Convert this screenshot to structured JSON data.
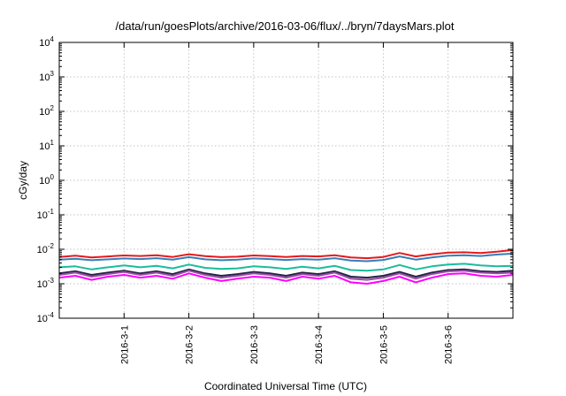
{
  "chart_data": {
    "type": "line",
    "title": "/data/run/goesPlots/archive/2016-03-06/flux/../bryn/7daysMars.plot",
    "xlabel": "Coordinated Universal Time (UTC)",
    "ylabel": "cGy/day",
    "yscale": "log",
    "ylim": [
      0.0001,
      10000
    ],
    "y_ticks": [
      {
        "base": "10",
        "exp": "-4",
        "value": 0.0001
      },
      {
        "base": "10",
        "exp": "-3",
        "value": 0.001
      },
      {
        "base": "10",
        "exp": "-2",
        "value": 0.01
      },
      {
        "base": "10",
        "exp": "-1",
        "value": 0.1
      },
      {
        "base": "10",
        "exp": "0",
        "value": 1
      },
      {
        "base": "10",
        "exp": "1",
        "value": 10
      },
      {
        "base": "10",
        "exp": "2",
        "value": 100
      },
      {
        "base": "10",
        "exp": "3",
        "value": 1000
      },
      {
        "base": "10",
        "exp": "4",
        "value": 10000
      }
    ],
    "xlim": [
      "2016-02-29 00:00",
      "2016-03-07 00:00"
    ],
    "x_ticks": [
      {
        "label": "2016-3-1",
        "value": "2016-03-01"
      },
      {
        "label": "2016-3-2",
        "value": "2016-03-02"
      },
      {
        "label": "2016-3-3",
        "value": "2016-03-03"
      },
      {
        "label": "2016-3-4",
        "value": "2016-03-04"
      },
      {
        "label": "2016-3-5",
        "value": "2016-03-05"
      },
      {
        "label": "2016-3-6",
        "value": "2016-03-06"
      }
    ],
    "grid": true,
    "legend": "none",
    "x": [
      "2016-02-29 00:00",
      "2016-02-29 06:00",
      "2016-02-29 12:00",
      "2016-02-29 18:00",
      "2016-03-01 00:00",
      "2016-03-01 06:00",
      "2016-03-01 12:00",
      "2016-03-01 18:00",
      "2016-03-02 00:00",
      "2016-03-02 06:00",
      "2016-03-02 12:00",
      "2016-03-02 18:00",
      "2016-03-03 00:00",
      "2016-03-03 06:00",
      "2016-03-03 12:00",
      "2016-03-03 18:00",
      "2016-03-04 00:00",
      "2016-03-04 06:00",
      "2016-03-04 12:00",
      "2016-03-04 18:00",
      "2016-03-05 00:00",
      "2016-03-05 06:00",
      "2016-03-05 12:00",
      "2016-03-05 18:00",
      "2016-03-06 00:00",
      "2016-03-06 06:00",
      "2016-03-06 12:00",
      "2016-03-06 18:00",
      "2016-03-07 00:00"
    ],
    "series": [
      {
        "color": "#e41a1c",
        "values": [
          0.006,
          0.0065,
          0.0058,
          0.0062,
          0.0066,
          0.0064,
          0.0067,
          0.006,
          0.0072,
          0.0063,
          0.0059,
          0.0061,
          0.0066,
          0.0063,
          0.006,
          0.0064,
          0.0062,
          0.0067,
          0.0058,
          0.0055,
          0.006,
          0.0078,
          0.0062,
          0.0072,
          0.008,
          0.0082,
          0.0078,
          0.0085,
          0.0095
        ]
      },
      {
        "color": "#377eb8",
        "values": [
          0.005,
          0.0053,
          0.0048,
          0.0051,
          0.0054,
          0.0052,
          0.0055,
          0.005,
          0.0059,
          0.0051,
          0.0048,
          0.005,
          0.0054,
          0.0052,
          0.0049,
          0.0052,
          0.005,
          0.0055,
          0.0047,
          0.0045,
          0.0049,
          0.0062,
          0.005,
          0.0058,
          0.0065,
          0.0067,
          0.0064,
          0.007,
          0.0075
        ]
      },
      {
        "color": "#1bbc9b",
        "values": [
          0.003,
          0.0032,
          0.0026,
          0.003,
          0.0034,
          0.003,
          0.0033,
          0.0028,
          0.0036,
          0.0029,
          0.0027,
          0.0028,
          0.0032,
          0.003,
          0.0027,
          0.0031,
          0.0028,
          0.0033,
          0.0025,
          0.0024,
          0.0026,
          0.0035,
          0.0026,
          0.0032,
          0.0036,
          0.0038,
          0.0034,
          0.0032,
          0.0033
        ]
      },
      {
        "color": "#222244",
        "values": [
          0.002,
          0.0023,
          0.0018,
          0.0021,
          0.0024,
          0.002,
          0.0023,
          0.0019,
          0.0026,
          0.002,
          0.0017,
          0.0019,
          0.0022,
          0.002,
          0.0017,
          0.0021,
          0.0019,
          0.0023,
          0.0016,
          0.0015,
          0.0017,
          0.0022,
          0.0016,
          0.0021,
          0.0025,
          0.0026,
          0.0023,
          0.0022,
          0.0024
        ]
      },
      {
        "color": "#984ea3",
        "values": [
          0.0018,
          0.0021,
          0.0016,
          0.0019,
          0.0022,
          0.0018,
          0.0021,
          0.0017,
          0.0024,
          0.0018,
          0.0015,
          0.0017,
          0.002,
          0.0018,
          0.0015,
          0.0019,
          0.0017,
          0.0021,
          0.0014,
          0.0013,
          0.0015,
          0.002,
          0.0014,
          0.0019,
          0.0023,
          0.0024,
          0.0021,
          0.002,
          0.0021
        ]
      },
      {
        "color": "#ff00ff",
        "values": [
          0.0015,
          0.0017,
          0.0013,
          0.0016,
          0.0018,
          0.0015,
          0.0017,
          0.0014,
          0.002,
          0.0015,
          0.0012,
          0.0014,
          0.0016,
          0.0015,
          0.0012,
          0.0016,
          0.0014,
          0.0017,
          0.0011,
          0.001,
          0.0012,
          0.0016,
          0.0011,
          0.0015,
          0.0019,
          0.002,
          0.0017,
          0.0016,
          0.0018
        ]
      }
    ]
  }
}
